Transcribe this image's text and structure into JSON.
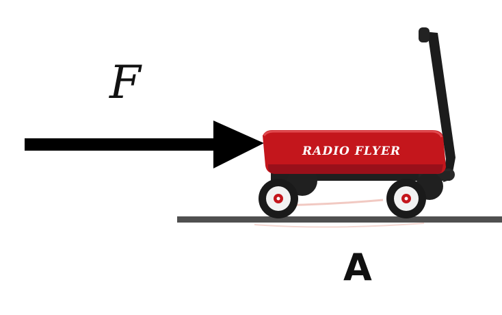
{
  "force": {
    "label": "F"
  },
  "wagon": {
    "brand_text": "RADIO FLYER",
    "body_color": "#c4161c",
    "handle_color": "#1c1c1c"
  },
  "ground": {
    "color": "#505050"
  },
  "arrow": {
    "color": "#000000",
    "direction": "right"
  },
  "panel": {
    "label": "A"
  }
}
